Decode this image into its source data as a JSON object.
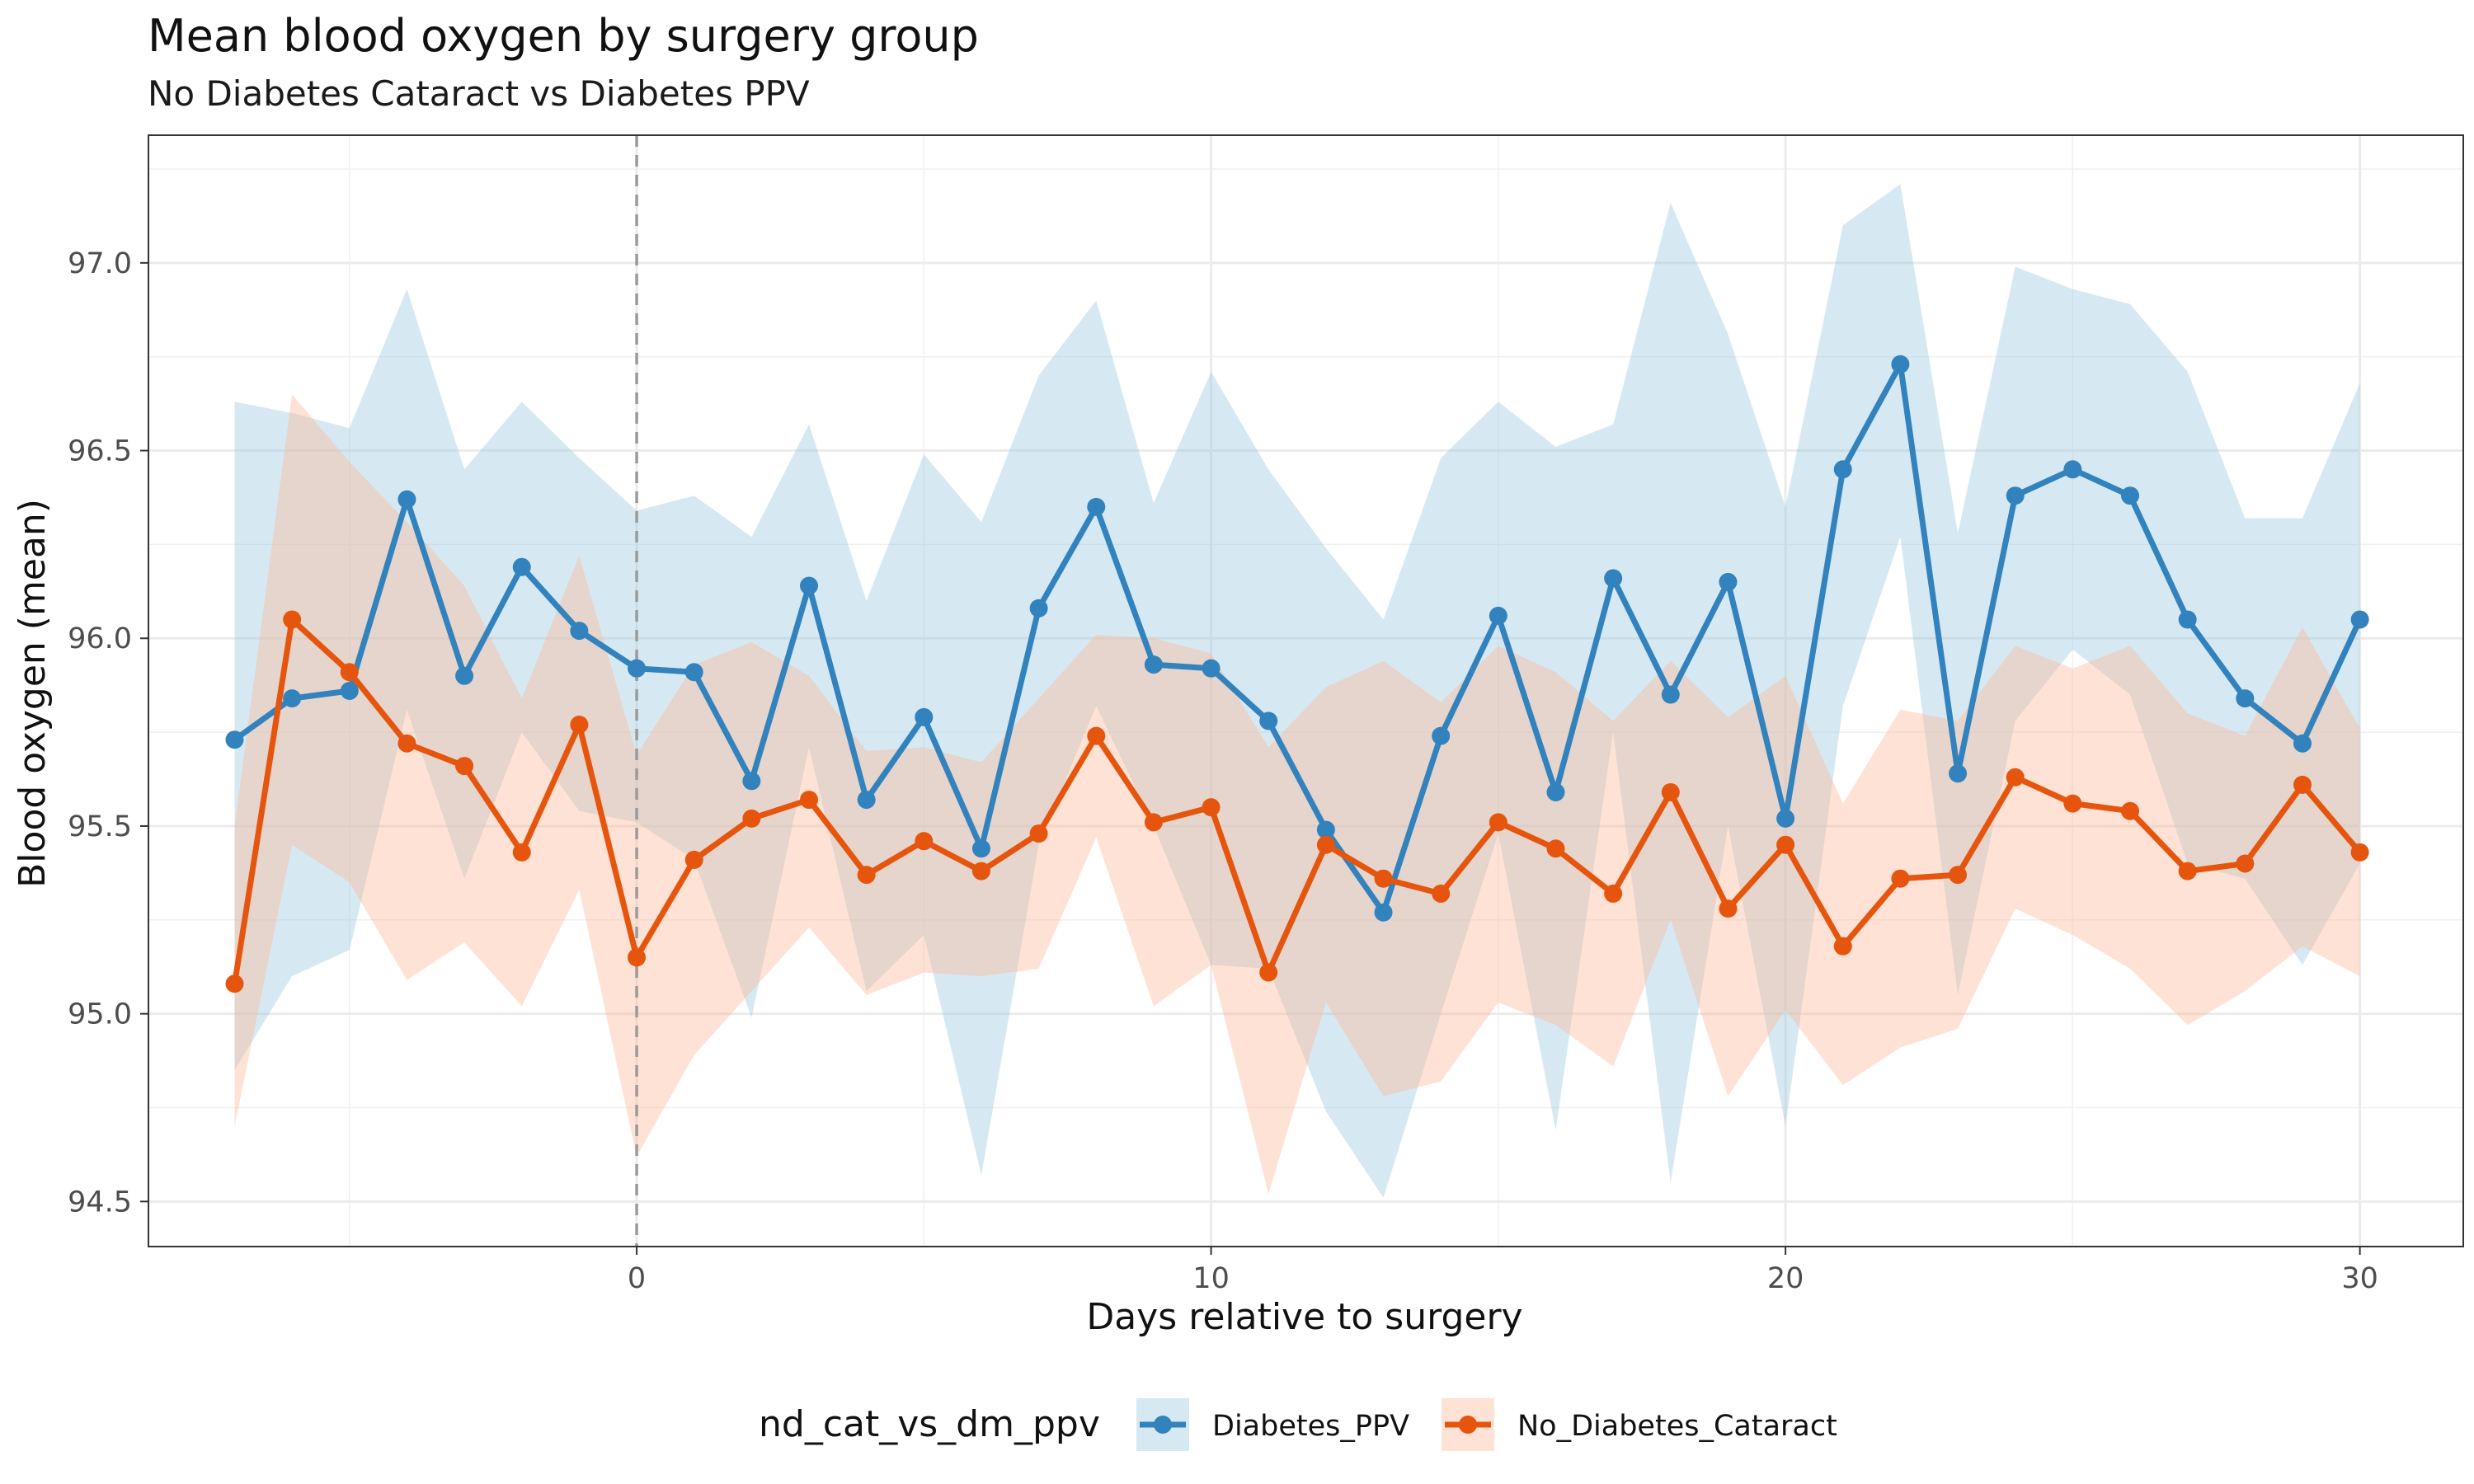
{
  "chart_data": {
    "type": "line",
    "title": "Mean blood oxygen by surgery group",
    "subtitle": "No Diabetes Cataract vs Diabetes PPV",
    "xlabel": "Days relative to surgery",
    "ylabel": "Blood oxygen (mean)",
    "xlim": [
      -8.5,
      31.8
    ],
    "ylim": [
      94.38,
      97.34
    ],
    "x_ticks": [
      0,
      10,
      20,
      30
    ],
    "x_tick_labels": [
      "0",
      "10",
      "20",
      "30"
    ],
    "y_ticks": [
      94.5,
      95.0,
      95.5,
      96.0,
      96.5,
      97.0
    ],
    "y_tick_labels": [
      "94.5",
      "95.0",
      "95.5",
      "96.0",
      "96.5",
      "97.0"
    ],
    "grid": true,
    "reference_line": {
      "x": 0,
      "style": "dashed"
    },
    "legend": {
      "title": "nd_cat_vs_dm_ppv",
      "position": "bottom"
    },
    "x": [
      -7,
      -6,
      -5,
      -4,
      -3,
      -2,
      -1,
      0,
      1,
      2,
      3,
      4,
      5,
      6,
      7,
      8,
      9,
      10,
      11,
      12,
      13,
      14,
      15,
      16,
      17,
      18,
      19,
      20,
      21,
      22,
      23,
      24,
      25,
      26,
      27,
      28,
      29,
      30
    ],
    "series": [
      {
        "name": "Diabetes_PPV",
        "color": "#3282BD",
        "band_color": "#9ECAE1",
        "values": [
          95.73,
          95.84,
          95.86,
          96.37,
          95.9,
          96.19,
          96.02,
          95.92,
          95.91,
          95.62,
          96.14,
          95.57,
          95.79,
          95.44,
          96.08,
          96.35,
          95.93,
          95.92,
          95.78,
          95.49,
          95.27,
          95.74,
          96.06,
          95.59,
          96.16,
          95.85,
          96.15,
          95.52,
          96.45,
          96.73,
          95.64,
          96.38,
          96.45,
          96.38,
          96.05,
          95.84,
          95.72,
          96.05
        ],
        "lower": [
          94.85,
          95.1,
          95.17,
          95.81,
          95.36,
          95.75,
          95.54,
          95.51,
          95.41,
          94.99,
          95.71,
          95.06,
          95.21,
          94.57,
          95.45,
          95.82,
          95.5,
          95.13,
          95.12,
          94.74,
          94.51,
          95.0,
          95.48,
          94.69,
          95.75,
          94.55,
          95.5,
          94.7,
          95.82,
          96.27,
          95.05,
          95.78,
          95.97,
          95.85,
          95.4,
          95.36,
          95.13,
          95.4
        ],
        "upper": [
          96.63,
          96.6,
          96.56,
          96.93,
          96.45,
          96.63,
          96.48,
          96.34,
          96.38,
          96.27,
          96.57,
          96.1,
          96.49,
          96.31,
          96.7,
          96.9,
          96.36,
          96.71,
          96.45,
          96.24,
          96.05,
          96.48,
          96.63,
          96.51,
          96.57,
          97.16,
          96.81,
          96.35,
          97.1,
          97.21,
          96.28,
          96.99,
          96.93,
          96.89,
          96.71,
          96.32,
          96.32,
          96.68
        ]
      },
      {
        "name": "No_Diabetes_Cataract",
        "color": "#E6550D",
        "band_color": "#FDBB9B",
        "values": [
          95.08,
          96.05,
          95.91,
          95.72,
          95.66,
          95.43,
          95.77,
          95.15,
          95.41,
          95.52,
          95.57,
          95.37,
          95.46,
          95.38,
          95.48,
          95.74,
          95.51,
          95.55,
          95.11,
          95.45,
          95.36,
          95.32,
          95.51,
          95.44,
          95.32,
          95.59,
          95.28,
          95.45,
          95.18,
          95.36,
          95.37,
          95.63,
          95.56,
          95.54,
          95.38,
          95.4,
          95.61,
          95.43
        ],
        "lower": [
          94.7,
          95.45,
          95.35,
          95.09,
          95.19,
          95.02,
          95.33,
          94.62,
          94.89,
          95.06,
          95.23,
          95.05,
          95.11,
          95.1,
          95.12,
          95.47,
          95.02,
          95.13,
          94.52,
          95.03,
          94.78,
          94.82,
          95.03,
          94.97,
          94.86,
          95.25,
          94.78,
          95.01,
          94.81,
          94.91,
          94.96,
          95.28,
          95.21,
          95.12,
          94.97,
          95.06,
          95.18,
          95.1
        ],
        "upper": [
          95.5,
          96.65,
          96.47,
          96.31,
          96.14,
          95.84,
          96.22,
          95.69,
          95.93,
          95.99,
          95.9,
          95.7,
          95.71,
          95.67,
          95.84,
          96.01,
          96.0,
          95.96,
          95.71,
          95.87,
          95.94,
          95.83,
          95.98,
          95.91,
          95.78,
          95.94,
          95.79,
          95.9,
          95.56,
          95.81,
          95.78,
          95.98,
          95.92,
          95.98,
          95.8,
          95.74,
          96.03,
          95.76
        ]
      }
    ]
  }
}
